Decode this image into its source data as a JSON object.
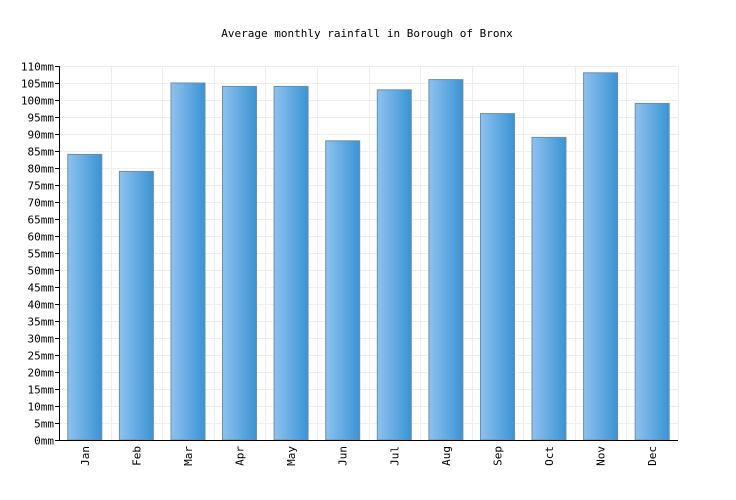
{
  "chart_data": {
    "type": "bar",
    "title": "Average monthly rainfall in Borough of Bronx",
    "xlabel": "",
    "ylabel": "",
    "unit": "mm",
    "categories": [
      "Jan",
      "Feb",
      "Mar",
      "Apr",
      "May",
      "Jun",
      "Jul",
      "Aug",
      "Sep",
      "Oct",
      "Nov",
      "Dec"
    ],
    "series": [
      {
        "values": [
          84,
          79,
          105,
          104,
          104,
          88,
          103,
          106,
          96,
          89,
          108,
          99
        ]
      }
    ],
    "ylim": [
      0,
      110
    ],
    "ytick_step": 5,
    "ytick_labels": [
      "0mm",
      "5mm",
      "10mm",
      "15mm",
      "20mm",
      "25mm",
      "30mm",
      "35mm",
      "40mm",
      "45mm",
      "50mm",
      "55mm",
      "60mm",
      "65mm",
      "70mm",
      "75mm",
      "80mm",
      "85mm",
      "90mm",
      "95mm",
      "100mm",
      "105mm",
      "110mm"
    ],
    "grid": true,
    "legend": "none",
    "colors": {
      "bar_light": "#8ec2ef",
      "bar_dark": "#3a93d4",
      "bar_border": "#6b8fa8",
      "grid": "#eeeeee"
    }
  }
}
